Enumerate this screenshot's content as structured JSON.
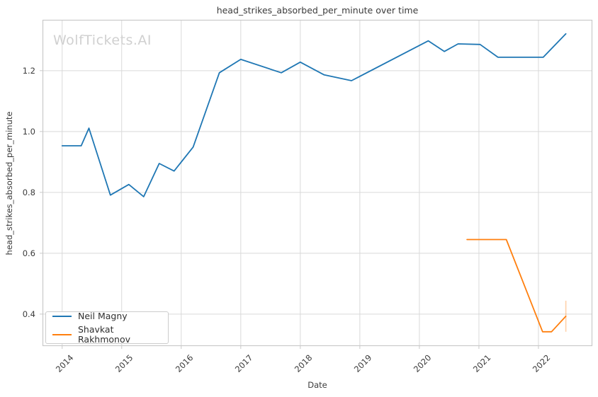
{
  "watermark": "WolfTickets.AI",
  "chart_data": {
    "type": "line",
    "title": "head_strikes_absorbed_per_minute over time",
    "xlabel": "Date",
    "ylabel": "head_strikes_absorbed_per_minute",
    "xlim": [
      2013.67,
      2022.905
    ],
    "ylim": [
      0.295,
      1.367
    ],
    "grid": true,
    "legend_position": "lower left",
    "x_tick_values": [
      2014,
      2015,
      2016,
      2017,
      2018,
      2019,
      2020,
      2021,
      2022
    ],
    "x_tick_labels": [
      "2014",
      "2015",
      "2016",
      "2017",
      "2018",
      "2019",
      "2020",
      "2021",
      "2022"
    ],
    "y_tick_values": [
      0.4,
      0.6,
      0.8,
      1.0,
      1.2
    ],
    "y_tick_labels": [
      "0.4",
      "0.6",
      "0.8",
      "1.0",
      "1.2"
    ],
    "series": [
      {
        "name": "Neil Magny",
        "color": "#1f77b4",
        "x": [
          2014.0,
          2014.32,
          2014.45,
          2014.81,
          2015.12,
          2015.37,
          2015.63,
          2015.88,
          2016.2,
          2016.64,
          2017.0,
          2017.68,
          2018.0,
          2018.4,
          2018.86,
          2020.15,
          2020.42,
          2020.65,
          2021.02,
          2021.32,
          2022.08,
          2022.46
        ],
        "y": [
          0.953,
          0.953,
          1.011,
          0.791,
          0.826,
          0.786,
          0.895,
          0.87,
          0.949,
          1.193,
          1.237,
          1.193,
          1.228,
          1.186,
          1.167,
          1.298,
          1.263,
          1.288,
          1.286,
          1.244,
          1.244,
          1.321
        ]
      },
      {
        "name": "Shavkat Rakhmonov",
        "color": "#ff7f0e",
        "x": [
          2020.8,
          2021.46,
          2022.07,
          2022.22,
          2022.46
        ],
        "y": [
          0.645,
          0.645,
          0.342,
          0.342,
          0.393
        ]
      }
    ],
    "error_bar": {
      "x": 2022.46,
      "y_low": 0.342,
      "y_high": 0.444,
      "color": "#ff7f0e",
      "opacity": 0.35
    },
    "grid_color": "#d9d9d9",
    "border_color": "#c9c9c9",
    "text_color": "#3b3b3b",
    "line_width": 1.8
  }
}
